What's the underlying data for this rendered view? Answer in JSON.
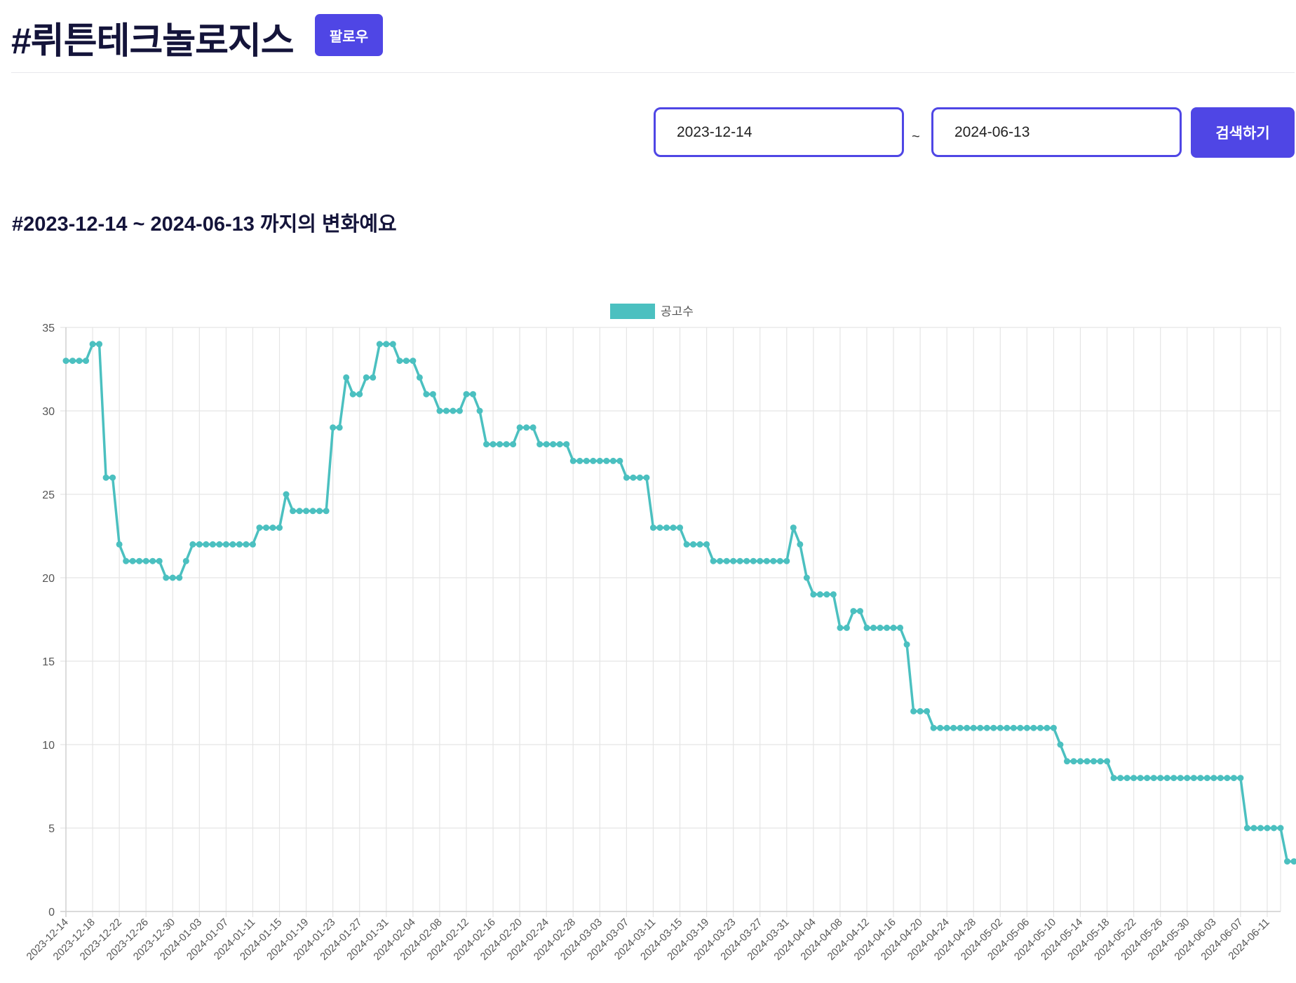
{
  "header": {
    "title": "#뤼튼테크놀로지스",
    "follow_label": "팔로우"
  },
  "search": {
    "start_date": "2023-12-14",
    "separator": "~",
    "end_date": "2024-06-13",
    "button_label": "검색하기"
  },
  "range_heading": "#2023-12-14 ~ 2024-06-13 까지의 변화예요",
  "colors": {
    "accent": "#4f46e5",
    "series": "#4bc0c0",
    "grid": "#e5e5e5",
    "title_text": "#14143a"
  },
  "chart_data": {
    "type": "line",
    "title": "",
    "xlabel": "",
    "ylabel": "",
    "x_start": "2023-12-14",
    "x_end": "2024-06-13",
    "x_tick_labels": [
      "2023-12-14",
      "2023-12-18",
      "2023-12-22",
      "2023-12-26",
      "2023-12-30",
      "2024-01-03",
      "2024-01-07",
      "2024-01-11",
      "2024-01-15",
      "2024-01-19",
      "2024-01-23",
      "2024-01-27",
      "2024-01-31",
      "2024-02-04",
      "2024-02-08",
      "2024-02-12",
      "2024-02-16",
      "2024-02-20",
      "2024-02-24",
      "2024-02-28",
      "2024-03-03",
      "2024-03-07",
      "2024-03-11",
      "2024-03-15",
      "2024-03-19",
      "2024-03-23",
      "2024-03-27",
      "2024-03-31",
      "2024-04-04",
      "2024-04-08",
      "2024-04-12",
      "2024-04-16",
      "2024-04-20",
      "2024-04-24",
      "2024-04-28",
      "2024-05-02",
      "2024-05-06",
      "2024-05-10",
      "2024-05-14",
      "2024-05-18",
      "2024-05-22",
      "2024-05-26",
      "2024-05-30",
      "2024-06-03",
      "2024-06-07",
      "2024-06-11"
    ],
    "y_ticks": [
      0,
      5,
      10,
      15,
      20,
      25,
      30,
      35
    ],
    "ylim": [
      0,
      35
    ],
    "grid": true,
    "legend_position": "top-center",
    "series": [
      {
        "name": "공고수",
        "color": "#4bc0c0",
        "values": [
          33,
          33,
          33,
          33,
          34,
          34,
          26,
          26,
          22,
          21,
          21,
          21,
          21,
          21,
          21,
          20,
          20,
          20,
          21,
          22,
          22,
          22,
          22,
          22,
          22,
          22,
          22,
          22,
          22,
          23,
          23,
          23,
          23,
          25,
          24,
          24,
          24,
          24,
          24,
          24,
          29,
          29,
          32,
          31,
          31,
          32,
          32,
          34,
          34,
          34,
          33,
          33,
          33,
          32,
          31,
          31,
          30,
          30,
          30,
          30,
          31,
          31,
          30,
          28,
          28,
          28,
          28,
          28,
          29,
          29,
          29,
          28,
          28,
          28,
          28,
          28,
          27,
          27,
          27,
          27,
          27,
          27,
          27,
          27,
          26,
          26,
          26,
          26,
          23,
          23,
          23,
          23,
          23,
          22,
          22,
          22,
          22,
          21,
          21,
          21,
          21,
          21,
          21,
          21,
          21,
          21,
          21,
          21,
          21,
          23,
          22,
          20,
          19,
          19,
          19,
          19,
          17,
          17,
          18,
          18,
          17,
          17,
          17,
          17,
          17,
          17,
          16,
          12,
          12,
          12,
          11,
          11,
          11,
          11,
          11,
          11,
          11,
          11,
          11,
          11,
          11,
          11,
          11,
          11,
          11,
          11,
          11,
          11,
          11,
          10,
          9,
          9,
          9,
          9,
          9,
          9,
          9,
          8,
          8,
          8,
          8,
          8,
          8,
          8,
          8,
          8,
          8,
          8,
          8,
          8,
          8,
          8,
          8,
          8,
          8,
          8,
          8,
          5,
          5,
          5,
          5,
          5,
          5,
          3,
          3,
          3
        ]
      }
    ]
  }
}
